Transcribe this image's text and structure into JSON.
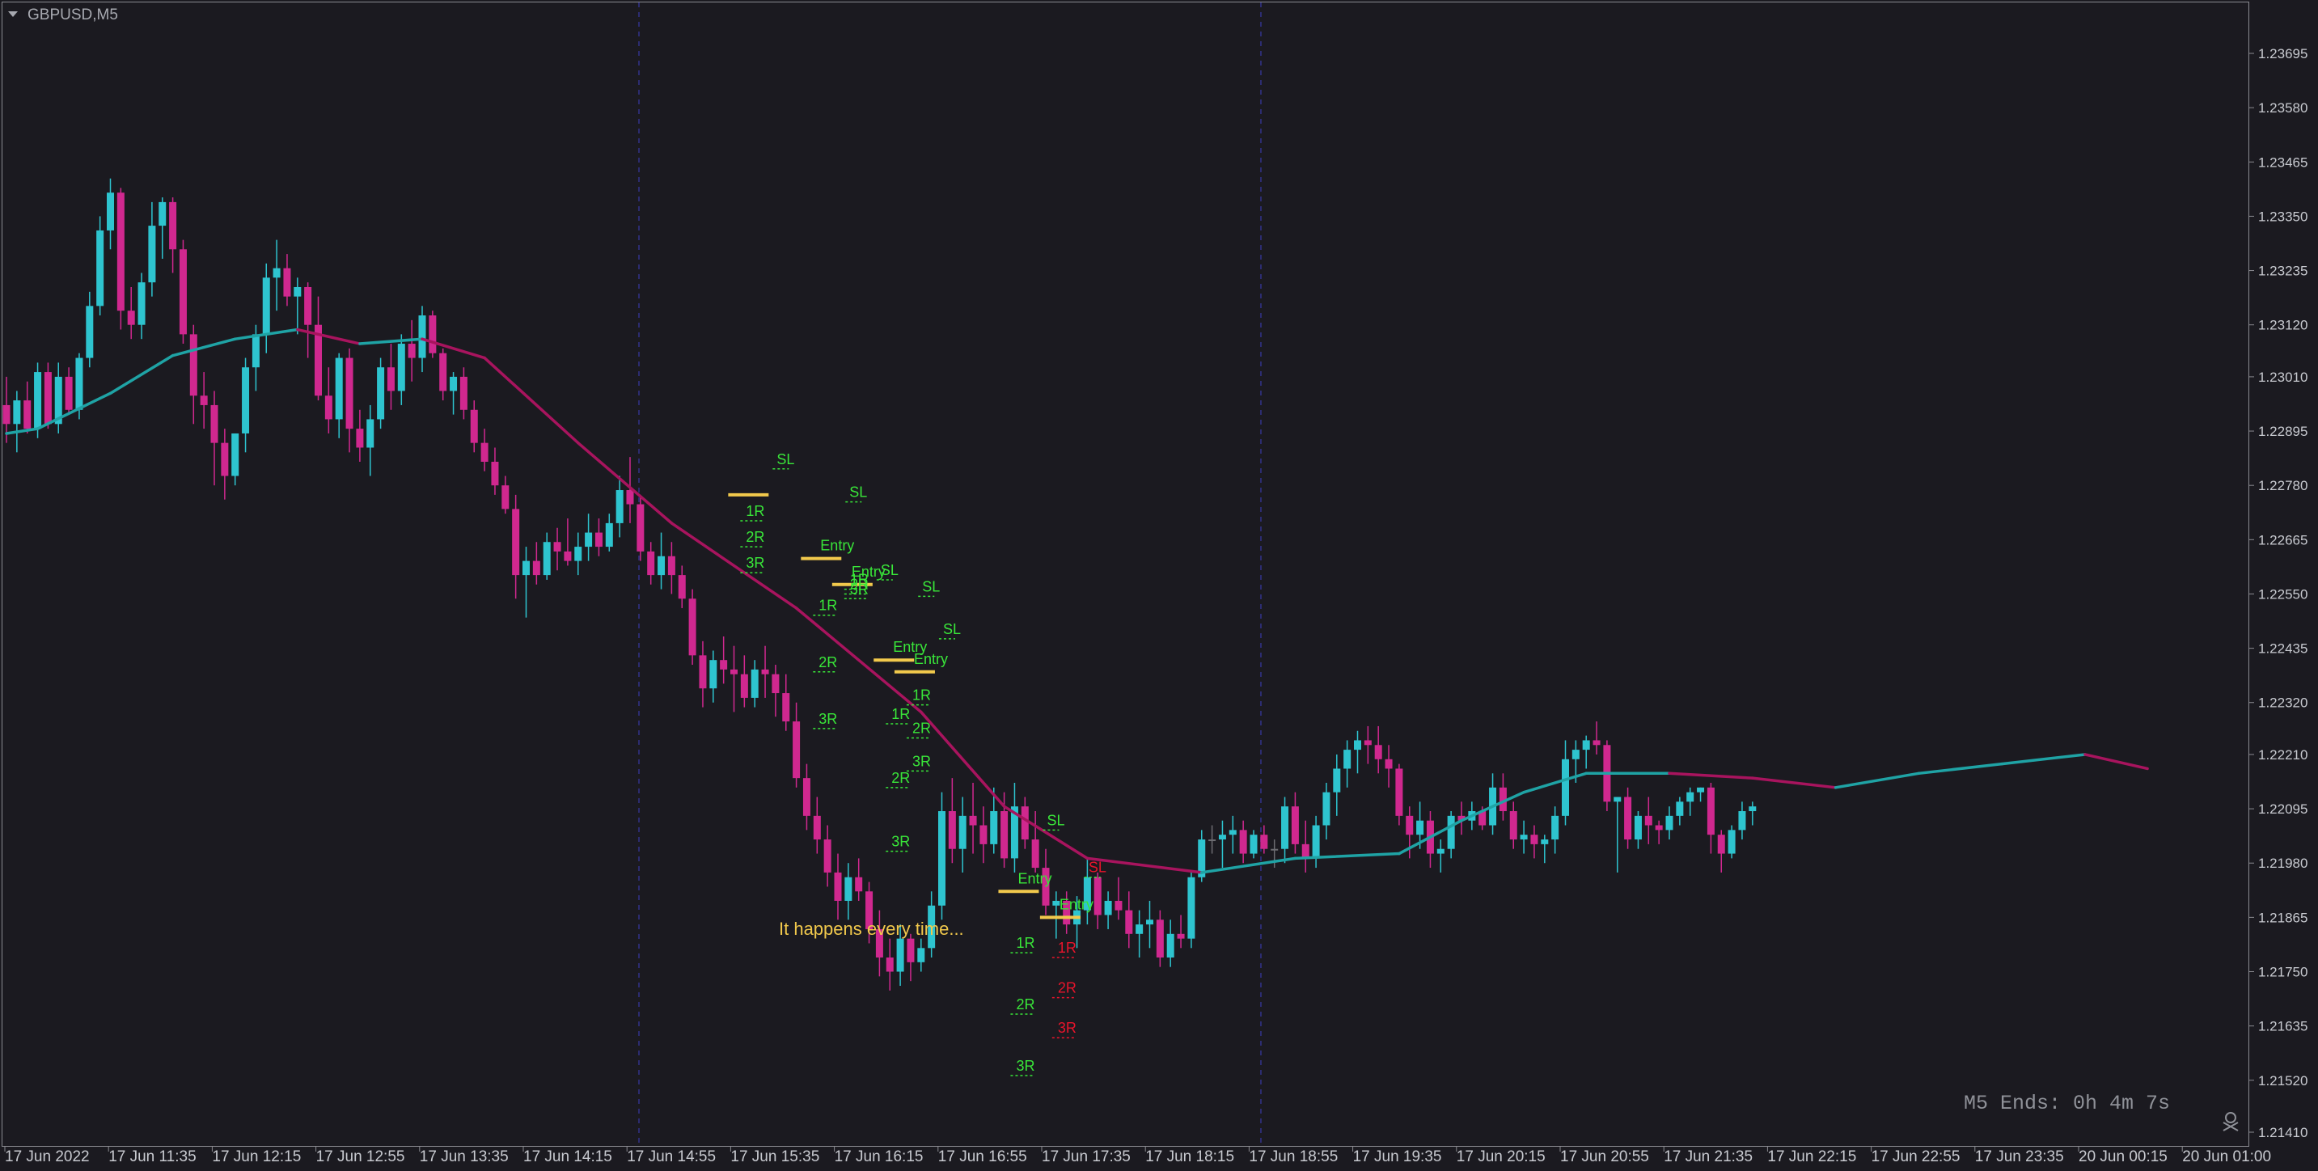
{
  "window": {
    "symbol_title": "GBPUSD,M5"
  },
  "colors": {
    "background": "#1b1a20",
    "bull": "#2ec4cf",
    "bear": "#d0288f",
    "neutral": "#6d6d72",
    "ma_up": "#1fa3a5",
    "ma_down": "#a8145e",
    "entry": "#f2c94c",
    "target": "#39e639",
    "stop_hit": "#e8142b",
    "separator": "#2a2a6a"
  },
  "chart_data": {
    "type": "candlestick",
    "symbol": "GBPUSD",
    "timeframe": "M5",
    "y_ticks": [
      "1.23695",
      "1.23580",
      "1.23465",
      "1.23350",
      "1.23235",
      "1.23120",
      "1.23010",
      "1.22895",
      "1.22780",
      "1.22665",
      "1.22550",
      "1.22435",
      "1.22320",
      "1.22210",
      "1.22095",
      "1.21980",
      "1.21865",
      "1.21750",
      "1.21635",
      "1.21520",
      "1.21410"
    ],
    "ylim": [
      1.21395,
      1.23715
    ],
    "x_ticks": [
      "17 Jun 2022",
      "17 Jun 11:35",
      "17 Jun 12:15",
      "17 Jun 12:55",
      "17 Jun 13:35",
      "17 Jun 14:15",
      "17 Jun 14:55",
      "17 Jun 15:35",
      "17 Jun 16:15",
      "17 Jun 16:55",
      "17 Jun 17:35",
      "17 Jun 18:15",
      "17 Jun 18:55",
      "17 Jun 19:35",
      "17 Jun 20:15",
      "17 Jun 20:55",
      "17 Jun 21:35",
      "17 Jun 22:15",
      "17 Jun 22:55",
      "17 Jun 23:35",
      "20 Jun 00:15",
      "20 Jun 01:00"
    ],
    "candles": [
      [
        1.2295,
        1.2301,
        1.2287,
        1.2291
      ],
      [
        1.2291,
        1.2298,
        1.2285,
        1.2296
      ],
      [
        1.2296,
        1.23,
        1.2289,
        1.229
      ],
      [
        1.229,
        1.2304,
        1.2288,
        1.2302
      ],
      [
        1.2302,
        1.2304,
        1.229,
        1.2291
      ],
      [
        1.2291,
        1.2304,
        1.2289,
        1.2301
      ],
      [
        1.2301,
        1.2303,
        1.2293,
        1.2294
      ],
      [
        1.2294,
        1.2306,
        1.2292,
        1.2305
      ],
      [
        1.2305,
        1.2319,
        1.2303,
        1.2316
      ],
      [
        1.2316,
        1.2335,
        1.2314,
        1.2332
      ],
      [
        1.2332,
        1.2343,
        1.2328,
        1.234
      ],
      [
        1.234,
        1.2341,
        1.2311,
        1.2315
      ],
      [
        1.2315,
        1.232,
        1.2309,
        1.2312
      ],
      [
        1.2312,
        1.2323,
        1.2309,
        1.2321
      ],
      [
        1.2321,
        1.2338,
        1.2318,
        1.2333
      ],
      [
        1.2333,
        1.2339,
        1.2326,
        1.2338
      ],
      [
        1.2338,
        1.2339,
        1.2323,
        1.2328
      ],
      [
        1.2328,
        1.233,
        1.2308,
        1.231
      ],
      [
        1.231,
        1.2312,
        1.2291,
        1.2297
      ],
      [
        1.2297,
        1.2302,
        1.229,
        1.2295
      ],
      [
        1.2295,
        1.2298,
        1.2278,
        1.2287
      ],
      [
        1.2287,
        1.229,
        1.2275,
        1.228
      ],
      [
        1.228,
        1.2289,
        1.2278,
        1.2289
      ],
      [
        1.2289,
        1.2305,
        1.2285,
        1.2303
      ],
      [
        1.2303,
        1.2312,
        1.2298,
        1.231
      ],
      [
        1.231,
        1.2325,
        1.2306,
        1.2322
      ],
      [
        1.2322,
        1.233,
        1.2315,
        1.2324
      ],
      [
        1.2324,
        1.2327,
        1.2316,
        1.2318
      ],
      [
        1.2318,
        1.2322,
        1.231,
        1.232
      ],
      [
        1.232,
        1.2321,
        1.2305,
        1.2312
      ],
      [
        1.2312,
        1.2318,
        1.2296,
        1.2297
      ],
      [
        1.2297,
        1.2303,
        1.2289,
        1.2292
      ],
      [
        1.2292,
        1.2306,
        1.2288,
        1.2305
      ],
      [
        1.2305,
        1.2307,
        1.2285,
        1.229
      ],
      [
        1.229,
        1.2294,
        1.2283,
        1.2286
      ],
      [
        1.2286,
        1.2295,
        1.228,
        1.2292
      ],
      [
        1.2292,
        1.2305,
        1.229,
        1.2303
      ],
      [
        1.2303,
        1.2308,
        1.2294,
        1.2298
      ],
      [
        1.2298,
        1.231,
        1.2295,
        1.2308
      ],
      [
        1.2308,
        1.2313,
        1.23,
        1.2305
      ],
      [
        1.2305,
        1.2316,
        1.2302,
        1.2314
      ],
      [
        1.2314,
        1.2315,
        1.2305,
        1.2306
      ],
      [
        1.2306,
        1.2307,
        1.2296,
        1.2298
      ],
      [
        1.2298,
        1.2302,
        1.2293,
        1.2301
      ],
      [
        1.2301,
        1.2303,
        1.2292,
        1.2294
      ],
      [
        1.2294,
        1.2296,
        1.2285,
        1.2287
      ],
      [
        1.2287,
        1.229,
        1.2281,
        1.2283
      ],
      [
        1.2283,
        1.2286,
        1.2276,
        1.2278
      ],
      [
        1.2278,
        1.228,
        1.2272,
        1.2273
      ],
      [
        1.2273,
        1.2276,
        1.2254,
        1.2259
      ],
      [
        1.2259,
        1.2265,
        1.225,
        1.2262
      ],
      [
        1.2262,
        1.2266,
        1.2257,
        1.2259
      ],
      [
        1.2259,
        1.2268,
        1.2258,
        1.2266
      ],
      [
        1.2266,
        1.2269,
        1.226,
        1.2264
      ],
      [
        1.2264,
        1.2271,
        1.2261,
        1.2262
      ],
      [
        1.2262,
        1.2268,
        1.2259,
        1.2265
      ],
      [
        1.2265,
        1.2272,
        1.2262,
        1.2268
      ],
      [
        1.2268,
        1.2271,
        1.2263,
        1.2265
      ],
      [
        1.2265,
        1.2272,
        1.2264,
        1.227
      ],
      [
        1.227,
        1.228,
        1.2267,
        1.2277
      ],
      [
        1.2277,
        1.2284,
        1.227,
        1.2274
      ],
      [
        1.2274,
        1.2276,
        1.2262,
        1.2264
      ],
      [
        1.2264,
        1.2266,
        1.2257,
        1.2259
      ],
      [
        1.2259,
        1.2268,
        1.2256,
        1.2263
      ],
      [
        1.2263,
        1.2266,
        1.2255,
        1.2259
      ],
      [
        1.2259,
        1.2261,
        1.2252,
        1.2254
      ],
      [
        1.2254,
        1.2256,
        1.224,
        1.2242
      ],
      [
        1.2242,
        1.2245,
        1.2231,
        1.2235
      ],
      [
        1.2235,
        1.2243,
        1.2232,
        1.2241
      ],
      [
        1.2241,
        1.2246,
        1.2236,
        1.2239
      ],
      [
        1.2239,
        1.2244,
        1.223,
        1.2238
      ],
      [
        1.2238,
        1.2242,
        1.2231,
        1.2233
      ],
      [
        1.2233,
        1.2241,
        1.2231,
        1.2239
      ],
      [
        1.2239,
        1.2244,
        1.2233,
        1.2238
      ],
      [
        1.2238,
        1.224,
        1.2229,
        1.2234
      ],
      [
        1.2234,
        1.2238,
        1.2226,
        1.2228
      ],
      [
        1.2228,
        1.2232,
        1.2214,
        1.2216
      ],
      [
        1.2216,
        1.2219,
        1.2205,
        1.2208
      ],
      [
        1.2208,
        1.2212,
        1.22,
        1.2203
      ],
      [
        1.2203,
        1.2206,
        1.2193,
        1.2196
      ],
      [
        1.2196,
        1.22,
        1.2186,
        1.219
      ],
      [
        1.219,
        1.2198,
        1.2186,
        1.2195
      ],
      [
        1.2195,
        1.2199,
        1.219,
        1.2192
      ],
      [
        1.2192,
        1.2194,
        1.2181,
        1.2184
      ],
      [
        1.2184,
        1.2188,
        1.2174,
        1.2178
      ],
      [
        1.2178,
        1.2182,
        1.2171,
        1.2175
      ],
      [
        1.2175,
        1.2185,
        1.2172,
        1.2182
      ],
      [
        1.2182,
        1.2183,
        1.2173,
        1.2177
      ],
      [
        1.2177,
        1.2182,
        1.2175,
        1.218
      ],
      [
        1.218,
        1.2192,
        1.2178,
        1.2189
      ],
      [
        1.2189,
        1.2213,
        1.2186,
        1.2209
      ],
      [
        1.2209,
        1.2216,
        1.2198,
        1.2201
      ],
      [
        1.2201,
        1.2212,
        1.2196,
        1.2208
      ],
      [
        1.2208,
        1.2215,
        1.22,
        1.2206
      ],
      [
        1.2206,
        1.221,
        1.2198,
        1.2202
      ],
      [
        1.2202,
        1.2214,
        1.22,
        1.2209
      ],
      [
        1.2209,
        1.2213,
        1.2197,
        1.2199
      ],
      [
        1.2199,
        1.2215,
        1.2196,
        1.221
      ],
      [
        1.221,
        1.2212,
        1.2201,
        1.2203
      ],
      [
        1.2203,
        1.2209,
        1.2196,
        1.2197
      ],
      [
        1.2197,
        1.2201,
        1.2187,
        1.2189
      ],
      [
        1.2189,
        1.2192,
        1.2182,
        1.219
      ],
      [
        1.219,
        1.2192,
        1.2183,
        1.2185
      ],
      [
        1.2185,
        1.2191,
        1.218,
        1.2188
      ],
      [
        1.2188,
        1.2199,
        1.2185,
        1.2195
      ],
      [
        1.2195,
        1.2196,
        1.2184,
        1.2187
      ],
      [
        1.2187,
        1.2192,
        1.2184,
        1.219
      ],
      [
        1.219,
        1.2195,
        1.2186,
        1.2188
      ],
      [
        1.2188,
        1.2192,
        1.218,
        1.2183
      ],
      [
        1.2183,
        1.2188,
        1.2178,
        1.2185
      ],
      [
        1.2185,
        1.219,
        1.218,
        1.2186
      ],
      [
        1.2186,
        1.2188,
        1.2176,
        1.2178
      ],
      [
        1.2178,
        1.2186,
        1.2176,
        1.2183
      ],
      [
        1.2183,
        1.2187,
        1.218,
        1.2182
      ],
      [
        1.2182,
        1.2196,
        1.218,
        1.2195
      ],
      [
        1.2195,
        1.2205,
        1.2194,
        1.2203
      ],
      [
        1.2203,
        1.2206,
        1.22,
        1.2203
      ],
      [
        1.2203,
        1.2207,
        1.2197,
        1.2204
      ],
      [
        1.2204,
        1.2208,
        1.22,
        1.2205
      ],
      [
        1.2205,
        1.2207,
        1.2198,
        1.22
      ],
      [
        1.22,
        1.2205,
        1.2199,
        1.2204
      ],
      [
        1.2204,
        1.2206,
        1.22,
        1.2201
      ],
      [
        1.2201,
        1.2203,
        1.2197,
        1.2201
      ],
      [
        1.2201,
        1.2212,
        1.2198,
        1.221
      ],
      [
        1.221,
        1.2213,
        1.22,
        1.2202
      ],
      [
        1.2202,
        1.2207,
        1.2196,
        1.2199
      ],
      [
        1.2199,
        1.2208,
        1.2197,
        1.2206
      ],
      [
        1.2206,
        1.2215,
        1.2203,
        1.2213
      ],
      [
        1.2213,
        1.2221,
        1.2208,
        1.2218
      ],
      [
        1.2218,
        1.2224,
        1.2214,
        1.2222
      ],
      [
        1.2222,
        1.2226,
        1.2217,
        1.2224
      ],
      [
        1.2224,
        1.2227,
        1.2219,
        1.2223
      ],
      [
        1.2223,
        1.2227,
        1.2217,
        1.222
      ],
      [
        1.222,
        1.2223,
        1.2214,
        1.2218
      ],
      [
        1.2218,
        1.2219,
        1.2206,
        1.2208
      ],
      [
        1.2208,
        1.221,
        1.2199,
        1.2204
      ],
      [
        1.2204,
        1.2211,
        1.2201,
        1.2207
      ],
      [
        1.2207,
        1.2209,
        1.2197,
        1.22
      ],
      [
        1.22,
        1.2203,
        1.2196,
        1.2201
      ],
      [
        1.2201,
        1.2209,
        1.2199,
        1.2208
      ],
      [
        1.2208,
        1.2211,
        1.2204,
        1.2207
      ],
      [
        1.2207,
        1.2211,
        1.2205,
        1.2209
      ],
      [
        1.2209,
        1.221,
        1.2205,
        1.2206
      ],
      [
        1.2206,
        1.2217,
        1.2204,
        1.2214
      ],
      [
        1.2214,
        1.2217,
        1.2207,
        1.2209
      ],
      [
        1.2209,
        1.2211,
        1.2201,
        1.2203
      ],
      [
        1.2203,
        1.2207,
        1.22,
        1.2204
      ],
      [
        1.2204,
        1.2206,
        1.2199,
        1.2202
      ],
      [
        1.2202,
        1.2204,
        1.2198,
        1.2203
      ],
      [
        1.2203,
        1.221,
        1.22,
        1.2208
      ],
      [
        1.2208,
        1.2224,
        1.2206,
        1.222
      ],
      [
        1.222,
        1.2224,
        1.2215,
        1.2222
      ],
      [
        1.2222,
        1.2225,
        1.2218,
        1.2224
      ],
      [
        1.2224,
        1.2228,
        1.2221,
        1.2223
      ],
      [
        1.2223,
        1.2224,
        1.2209,
        1.2211
      ],
      [
        1.2211,
        1.2212,
        1.2196,
        1.2212
      ],
      [
        1.2212,
        1.2214,
        1.2201,
        1.2203
      ],
      [
        1.2203,
        1.2209,
        1.2201,
        1.2208
      ],
      [
        1.2208,
        1.2212,
        1.2202,
        1.2206
      ],
      [
        1.2206,
        1.2207,
        1.2202,
        1.2205
      ],
      [
        1.2205,
        1.221,
        1.2203,
        1.2208
      ],
      [
        1.2208,
        1.2212,
        1.2206,
        1.2211
      ],
      [
        1.2211,
        1.2214,
        1.2208,
        1.2213
      ],
      [
        1.2213,
        1.2214,
        1.2211,
        1.2214
      ],
      [
        1.2214,
        1.2215,
        1.22,
        1.2204
      ],
      [
        1.2204,
        1.2205,
        1.2196,
        1.22
      ],
      [
        1.22,
        1.2206,
        1.2199,
        1.2205
      ],
      [
        1.2205,
        1.2211,
        1.2203,
        1.2209
      ],
      [
        1.2209,
        1.2211,
        1.2206,
        1.221
      ]
    ],
    "moving_average": [
      [
        0,
        1.2289
      ],
      [
        3,
        1.229
      ],
      [
        10,
        1.22975
      ],
      [
        16,
        1.23055
      ],
      [
        22,
        1.2309
      ],
      [
        28,
        1.2311
      ],
      [
        34,
        1.2308
      ],
      [
        40,
        1.2309
      ],
      [
        46,
        1.2305
      ],
      [
        55,
        1.2287
      ],
      [
        64,
        1.227
      ],
      [
        76,
        1.2252
      ],
      [
        88,
        1.223
      ],
      [
        96,
        1.221
      ],
      [
        104,
        1.2199
      ],
      [
        115,
        1.2196
      ],
      [
        124,
        1.2199
      ],
      [
        134,
        1.22
      ],
      [
        140,
        1.2207
      ],
      [
        146,
        1.2213
      ],
      [
        152,
        1.2217
      ],
      [
        160,
        1.2217
      ],
      [
        168,
        1.2216
      ],
      [
        176,
        1.2214
      ],
      [
        184,
        1.2217
      ],
      [
        192,
        1.2219
      ],
      [
        200,
        1.2221
      ],
      [
        206,
        1.2218
      ]
    ],
    "trade_setups": [
      {
        "entry": 1.2276,
        "sl_price": 1.22815,
        "sl": "SL",
        "r1": "1R",
        "r2": "2R",
        "r3": "3R",
        "status": "target"
      },
      {
        "entry": 1.22625,
        "sl_price": 1.22745,
        "sl": "SL",
        "entry_label": "Entry",
        "r1": "1R",
        "r2": "2R",
        "r3": "3R",
        "status": "target"
      },
      {
        "entry": 1.2257,
        "sl_price": 1.2256,
        "sl": "SL",
        "entry_label": "Entry",
        "r1": "1R",
        "r2": "2R",
        "r3": "3R",
        "status": "target"
      },
      {
        "entry": 1.2241,
        "sl_price": 1.22545,
        "sl": "SL",
        "entry_label": "Entry",
        "r1": "1R",
        "r2": "2R",
        "r3": "3R",
        "status": "target"
      },
      {
        "entry": 1.22385,
        "sl_price": 1.22455,
        "sl": "SL",
        "entry_label": "Entry",
        "r1": "1R",
        "r2": "2R",
        "r3": "3R",
        "status": "target"
      },
      {
        "entry": 1.2192,
        "sl_price": 1.2205,
        "sl": "SL",
        "entry_label": "Entry",
        "r1": "1R",
        "r2": "2R",
        "r3": "3R",
        "status": "target"
      },
      {
        "entry": 1.21865,
        "sl_price": 1.2195,
        "sl": "SL",
        "entry_label": "Entry",
        "r1": "1R",
        "r2": "2R",
        "r3": "3R",
        "status": "stopped"
      }
    ],
    "annotation": "It happens every time...",
    "timer_text": "M5 Ends: 0h 4m 7s"
  }
}
